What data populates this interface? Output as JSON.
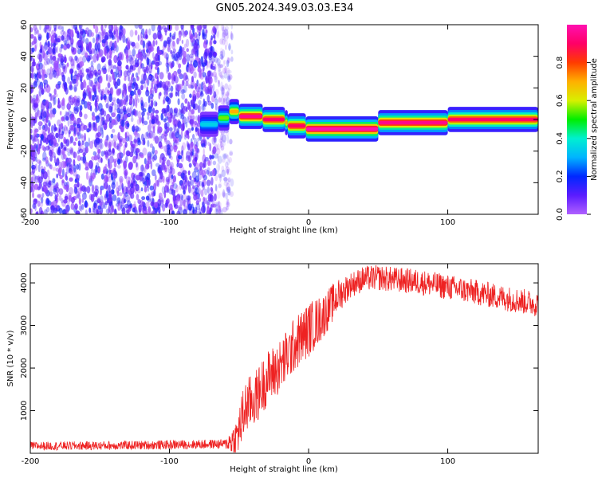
{
  "title": "GN05.2024.349.03.03.E34",
  "colors": {
    "snr_line": "#ee2222",
    "colorbar": [
      "#b060ff",
      "#5a1cff",
      "#0028ff",
      "#00b4ff",
      "#00f0d0",
      "#00ee00",
      "#d8f000",
      "#ffb000",
      "#ff3c00",
      "#ff0066",
      "#ff10b0"
    ]
  },
  "chart_data": [
    {
      "type": "heatmap",
      "title": "GN05.2024.349.03.03.E34",
      "xlabel": "Height of straight line (km)",
      "ylabel": "Frequency (Hz)",
      "xlim": [
        -200,
        165
      ],
      "ylim": [
        -60,
        60
      ],
      "xticks": [
        -200,
        -100,
        0,
        100
      ],
      "yticks": [
        -60,
        -40,
        -20,
        0,
        20,
        40,
        60
      ],
      "grid": false,
      "colorbar": {
        "label": "Normalized spectral amplitude",
        "range": [
          0.0,
          1.0
        ],
        "ticks": [
          0.0,
          0.2,
          0.4,
          0.6,
          0.8
        ]
      },
      "noise_region_x": [
        -200,
        -55
      ],
      "ridge": [
        {
          "x0": -78,
          "x1": -65,
          "freq": -3,
          "amp": 0.35
        },
        {
          "x0": -65,
          "x1": -57,
          "freq": 1,
          "amp": 0.55
        },
        {
          "x0": -57,
          "x1": -50,
          "freq": 5,
          "amp": 0.7
        },
        {
          "x0": -50,
          "x1": -33,
          "freq": 2,
          "amp": 0.95
        },
        {
          "x0": -33,
          "x1": -17,
          "freq": 0,
          "amp": 0.9
        },
        {
          "x0": -17,
          "x1": -15,
          "freq": -2,
          "amp": 0.7
        },
        {
          "x0": -15,
          "x1": -2,
          "freq": -4,
          "amp": 0.9
        },
        {
          "x0": -2,
          "x1": 50,
          "freq": -6,
          "amp": 1.0
        },
        {
          "x0": 50,
          "x1": 100,
          "freq": -2,
          "amp": 0.95
        },
        {
          "x0": 100,
          "x1": 165,
          "freq": 0,
          "amp": 0.9
        }
      ]
    },
    {
      "type": "line",
      "xlabel": "Height of straight line (km)",
      "ylabel": "SNR (10 * v/v)",
      "xlim": [
        -200,
        165
      ],
      "ylim": [
        0,
        4450
      ],
      "xticks": [
        -200,
        -100,
        0,
        100
      ],
      "yticks": [
        1000,
        2000,
        3000,
        4000
      ],
      "grid": false,
      "trend": {
        "x": [
          -200,
          -150,
          -100,
          -60,
          -52,
          -45,
          -38,
          -30,
          -20,
          -10,
          0,
          10,
          20,
          30,
          40,
          50,
          60,
          80,
          100,
          120,
          140,
          165
        ],
        "y": [
          170,
          180,
          200,
          220,
          350,
          1100,
          1300,
          1750,
          2050,
          2550,
          2900,
          3200,
          3650,
          3950,
          4100,
          4120,
          4080,
          4020,
          3900,
          3780,
          3650,
          3500
        ]
      },
      "noise_amplitude": [
        {
          "x": -200,
          "amp": 100
        },
        {
          "x": -60,
          "amp": 110
        },
        {
          "x": -48,
          "amp": 650
        },
        {
          "x": 0,
          "amp": 650
        },
        {
          "x": 30,
          "amp": 300
        },
        {
          "x": 165,
          "amp": 300
        }
      ]
    }
  ]
}
